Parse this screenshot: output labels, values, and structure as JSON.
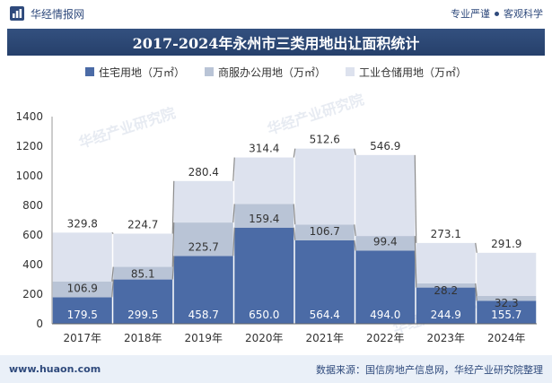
{
  "header": {
    "brand_name": "华经情报网",
    "tagline_left": "专业严谨",
    "tagline_right": "客观科学"
  },
  "footer": {
    "website": "www.huaon.com",
    "source": "数据来源：国信房地产信息网，华经产业研究院整理"
  },
  "watermark": "华经产业研究院",
  "colors": {
    "residential": "#4b6ba6",
    "commercial": "#b9c4d6",
    "industrial": "#dde2ee",
    "title_bg": "#2c4674",
    "line": "#8c8c8c"
  },
  "chart_data": {
    "type": "bar",
    "stacked": true,
    "title": "2017-2024年永州市三类用地出让面积统计",
    "categories": [
      "2017年",
      "2018年",
      "2019年",
      "2020年",
      "2021年",
      "2022年",
      "2023年",
      "2024年"
    ],
    "series": [
      {
        "name": "住宅用地（万㎡）",
        "values": [
          179.5,
          299.5,
          458.7,
          650.0,
          564.4,
          494.0,
          244.9,
          155.7
        ]
      },
      {
        "name": "商服办公用地（万㎡）",
        "values": [
          106.9,
          85.1,
          225.7,
          159.4,
          106.7,
          99.4,
          28.2,
          32.3
        ]
      },
      {
        "name": "工业仓储用地（万㎡）",
        "values": [
          329.8,
          224.7,
          280.4,
          314.4,
          512.6,
          546.9,
          273.1,
          291.9
        ]
      }
    ],
    "data_labels": [
      [
        "179.5",
        "299.5",
        "458.7",
        "650.0",
        "564.4",
        "494.0",
        "244.9",
        "155.7"
      ],
      [
        "106.9",
        "85.1",
        "225.7",
        "159.4",
        "106.7",
        "99.4",
        "28.2",
        "32.3"
      ],
      [
        "329.8",
        "224.7",
        "280.4",
        "314.4",
        "512.6",
        "546.9",
        "273.1",
        "291.9"
      ]
    ],
    "y_ticks": [
      "0",
      "200",
      "400",
      "600",
      "800",
      "1000",
      "1200",
      "1400"
    ],
    "ylim": [
      0,
      1400
    ],
    "grid": false,
    "legend_position": "top"
  }
}
